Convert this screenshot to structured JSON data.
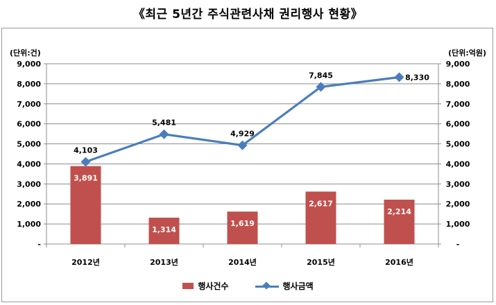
{
  "title": "《최근 5년간 주식관련사채 권리행사 현황》",
  "left_unit": "(단위:건)",
  "right_unit": "(단위:억원)",
  "chart_data": {
    "type": "bar",
    "categories": [
      "2012년",
      "2013년",
      "2014년",
      "2015년",
      "2016년"
    ],
    "series": [
      {
        "name": "행사건수",
        "type": "bar",
        "axis": "left",
        "values": [
          3891,
          1314,
          1619,
          2617,
          2214
        ],
        "color": "#c0504d"
      },
      {
        "name": "행사금액",
        "type": "line",
        "axis": "right",
        "values": [
          4103,
          5481,
          4929,
          7845,
          8330
        ],
        "color": "#4a7ebb"
      }
    ],
    "y_left": {
      "ylim": [
        0,
        9000
      ],
      "ticks": [
        "-",
        "1,000",
        "2,000",
        "3,000",
        "4,000",
        "5,000",
        "6,000",
        "7,000",
        "8,000",
        "9,000"
      ]
    },
    "y_right": {
      "ylim": [
        0,
        9000
      ],
      "ticks": [
        "-",
        "1,000",
        "2,000",
        "3,000",
        "4,000",
        "5,000",
        "6,000",
        "7,000",
        "8,000",
        "9,000"
      ]
    },
    "bar_labels": [
      "3,891",
      "1,314",
      "1,619",
      "2,617",
      "2,214"
    ],
    "line_labels": [
      "4,103",
      "5,481",
      "4,929",
      "7,845",
      "8,330"
    ],
    "grid": true,
    "legend_position": "bottom"
  }
}
